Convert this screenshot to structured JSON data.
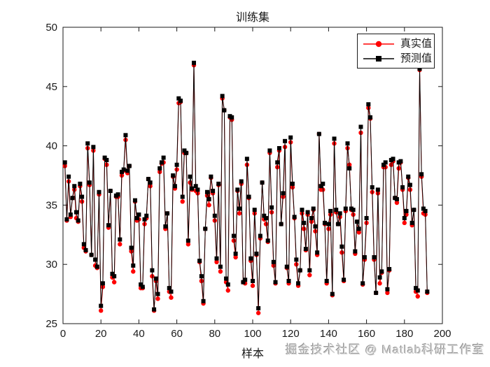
{
  "watermark": {
    "text": "掘金技术社区 @ Matlab科研工作室"
  },
  "legend": {
    "entries": [
      {
        "label": "真实值",
        "marker": "circle",
        "color": "#ff0000"
      },
      {
        "label": "预测值",
        "marker": "square",
        "color": "#000000"
      }
    ]
  },
  "chart_data": {
    "type": "line",
    "title": "训练集",
    "xlabel": "样本",
    "ylabel": "",
    "xlim": [
      0,
      200
    ],
    "ylim": [
      25,
      50
    ],
    "xticks": [
      0,
      20,
      40,
      60,
      80,
      100,
      120,
      140,
      160,
      180,
      200
    ],
    "yticks": [
      25,
      30,
      35,
      40,
      45,
      50
    ],
    "grid": false,
    "legend_position": "top-right",
    "axis_color": "#1a1a1a",
    "background": "#ffffff",
    "x": [
      1,
      2,
      3,
      4,
      5,
      6,
      7,
      8,
      9,
      10,
      11,
      12,
      13,
      14,
      15,
      16,
      17,
      18,
      19,
      20,
      21,
      22,
      23,
      24,
      25,
      26,
      27,
      28,
      29,
      30,
      31,
      32,
      33,
      34,
      35,
      36,
      37,
      38,
      39,
      40,
      41,
      42,
      43,
      44,
      45,
      46,
      47,
      48,
      49,
      50,
      51,
      52,
      53,
      54,
      55,
      56,
      57,
      58,
      59,
      60,
      61,
      62,
      63,
      64,
      65,
      66,
      67,
      68,
      69,
      70,
      71,
      72,
      73,
      74,
      75,
      76,
      77,
      78,
      79,
      80,
      81,
      82,
      83,
      84,
      85,
      86,
      87,
      88,
      89,
      90,
      91,
      92,
      93,
      94,
      95,
      96,
      97,
      98,
      99,
      100,
      101,
      102,
      103,
      104,
      105,
      106,
      107,
      108,
      109,
      110,
      111,
      112,
      113,
      114,
      115,
      116,
      117,
      118,
      119,
      120,
      121,
      122,
      123,
      124,
      125,
      126,
      127,
      128,
      129,
      130,
      131,
      132,
      133,
      134,
      135,
      136,
      137,
      138,
      139,
      140,
      141,
      142,
      143,
      144,
      145,
      146,
      147,
      148,
      149,
      150,
      151,
      152,
      153,
      154,
      155,
      156,
      157,
      158,
      159,
      160,
      161,
      162,
      163,
      164,
      165,
      166,
      167,
      168,
      169,
      170,
      171,
      172,
      173,
      174,
      175,
      176,
      177,
      178,
      179,
      180,
      181,
      182,
      183,
      184,
      185,
      186,
      187,
      188,
      189,
      190,
      191,
      192
    ],
    "series": [
      {
        "name": "真实值",
        "color": "#ff0000",
        "marker": "circle",
        "values": [
          38.3,
          33.7,
          37.0,
          34.0,
          35.6,
          36.3,
          33.9,
          33.6,
          36.6,
          35.3,
          31.4,
          31.1,
          39.8,
          36.7,
          30.8,
          39.6,
          29.9,
          29.7,
          35.9,
          26.1,
          28.1,
          38.9,
          38.4,
          33.1,
          36.2,
          28.9,
          28.5,
          35.7,
          35.7,
          31.7,
          37.5,
          37.9,
          40.5,
          37.7,
          38.3,
          31.1,
          29.4,
          35.3,
          33.7,
          33.8,
          28.0,
          28.0,
          33.4,
          33.9,
          37.2,
          36.6,
          29.0,
          26.1,
          28.6,
          27.1,
          37.8,
          38.5,
          38.6,
          33.0,
          34.3,
          27.7,
          27.2,
          37.4,
          36.4,
          38.0,
          43.6,
          43.7,
          35.3,
          39.4,
          39.4,
          31.7,
          36.9,
          36.3,
          46.8,
          36.2,
          36.0,
          30.2,
          28.6,
          26.7,
          33.0,
          35.8,
          35.0,
          37.3,
          36.0,
          33.7,
          30.2,
          36.7,
          29.4,
          44.0,
          43.0,
          28.5,
          27.8,
          42.4,
          42.2,
          32.0,
          30.6,
          36.2,
          34.3,
          36.8,
          28.5,
          28.4,
          38.4,
          35.6,
          30.3,
          28.2,
          34.3,
          30.8,
          25.9,
          32.2,
          36.9,
          33.8,
          33.4,
          31.9,
          39.4,
          34.4,
          29.9,
          28.4,
          38.2,
          39.6,
          33.4,
          35.7,
          39.9,
          29.7,
          28.4,
          40.3,
          36.5,
          33.9,
          30.0,
          28.2,
          29.5,
          34.3,
          33.0,
          31.2,
          34.2,
          29.1,
          33.6,
          34.6,
          32.8,
          30.8,
          41.0,
          36.3,
          36.3,
          33.4,
          28.4,
          33.0,
          34.2,
          27.4,
          40.2,
          34.4,
          33.4,
          34.0,
          31.0,
          28.6,
          34.5,
          39.8,
          38.4,
          34.6,
          34.2,
          30.9,
          33.6,
          32.7,
          41.1,
          28.3,
          30.4,
          33.5,
          43.2,
          42.3,
          36.1,
          30.4,
          27.6,
          36.0,
          28.4,
          29.3,
          38.2,
          38.2,
          27.6,
          29.5,
          38.4,
          38.7,
          35.6,
          35.2,
          38.1,
          38.6,
          36.3,
          33.5,
          34.2,
          37.3,
          36.3,
          33.3,
          34.6,
          27.7,
          27.3,
          46.4,
          37.4,
          34.3,
          34.2,
          27.6
        ]
      },
      {
        "name": "预测值",
        "color": "#000000",
        "marker": "square",
        "values": [
          38.6,
          33.8,
          37.4,
          34.2,
          35.6,
          36.6,
          34.4,
          33.7,
          36.8,
          35.7,
          31.7,
          31.2,
          40.2,
          36.9,
          30.8,
          39.9,
          30.4,
          29.8,
          36.1,
          26.5,
          28.4,
          39.0,
          38.8,
          33.3,
          36.2,
          29.2,
          29.0,
          35.8,
          35.9,
          32.1,
          37.8,
          38.0,
          40.9,
          37.9,
          38.3,
          31.4,
          29.9,
          35.4,
          33.9,
          34.2,
          28.3,
          28.1,
          33.8,
          34.1,
          37.2,
          36.9,
          29.5,
          26.2,
          28.8,
          27.5,
          38.1,
          38.6,
          39.0,
          33.2,
          34.3,
          28.0,
          27.7,
          37.5,
          36.6,
          38.4,
          44.0,
          43.8,
          35.7,
          39.6,
          39.4,
          32.0,
          37.4,
          36.4,
          47.0,
          36.6,
          36.3,
          30.3,
          29.0,
          26.9,
          33.0,
          36.1,
          35.5,
          37.4,
          36.2,
          34.1,
          30.5,
          36.8,
          29.8,
          44.2,
          43.0,
          28.8,
          28.3,
          42.5,
          42.4,
          32.4,
          30.9,
          36.3,
          34.7,
          37.0,
          28.5,
          28.7,
          38.9,
          35.7,
          30.5,
          28.6,
          34.6,
          30.9,
          26.3,
          32.4,
          36.9,
          34.1,
          33.9,
          32.0,
          39.6,
          34.8,
          30.2,
          28.5,
          38.6,
          39.8,
          33.4,
          36.0,
          40.4,
          29.8,
          28.6,
          40.7,
          36.8,
          34.0,
          30.4,
          28.4,
          29.5,
          34.6,
          33.5,
          31.3,
          34.4,
          29.5,
          33.9,
          34.7,
          33.2,
          31.0,
          41.0,
          36.6,
          36.8,
          33.5,
          28.6,
          33.4,
          34.5,
          27.5,
          40.6,
          34.6,
          33.4,
          34.3,
          31.5,
          28.7,
          34.7,
          40.2,
          38.1,
          34.7,
          34.6,
          31.1,
          33.6,
          33.0,
          41.6,
          28.4,
          30.6,
          33.9,
          43.5,
          42.4,
          36.5,
          30.6,
          27.6,
          36.3,
          28.9,
          29.4,
          38.4,
          38.6,
          27.9,
          29.6,
          38.8,
          38.9,
          35.6,
          35.5,
          38.6,
          38.7,
          36.5,
          33.9,
          34.5,
          37.4,
          36.7,
          33.5,
          34.6,
          28.0,
          27.8,
          46.5,
          37.6,
          34.7,
          34.5,
          27.7
        ]
      }
    ]
  }
}
